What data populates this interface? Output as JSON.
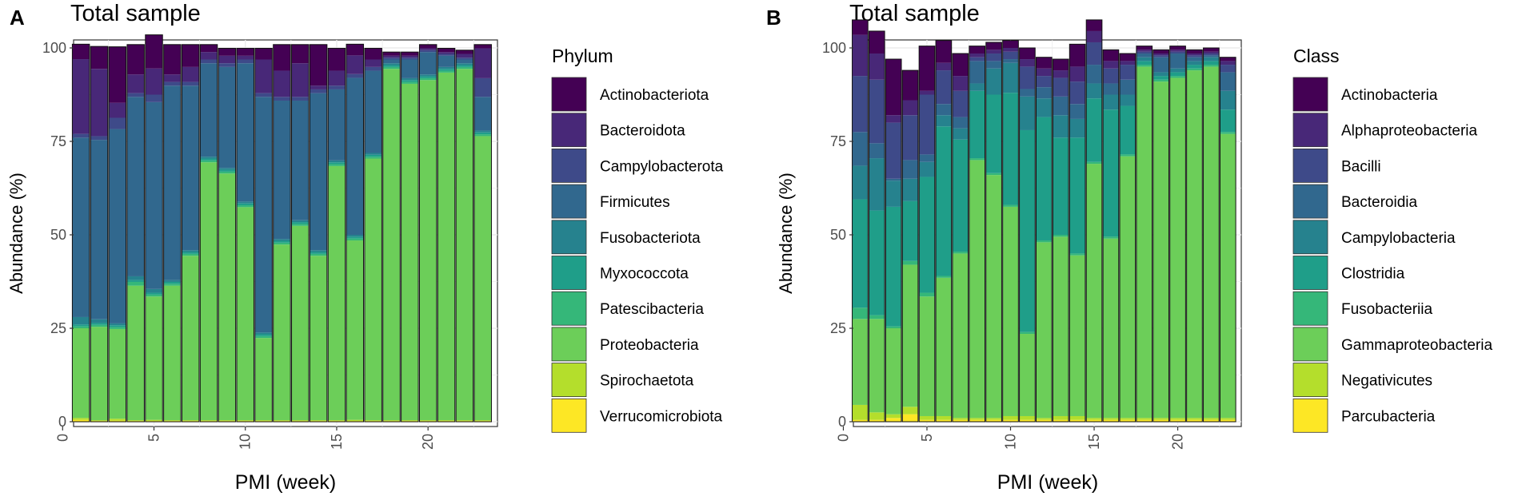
{
  "panels": [
    {
      "letter": "A",
      "chart_data": {
        "type": "bar",
        "stacked": true,
        "title": "Total sample",
        "xlabel": "PMI (week)",
        "ylabel": "Abundance (%)",
        "xlim": [
          0,
          24
        ],
        "ylim": [
          0,
          100
        ],
        "x_ticks": [
          0,
          5,
          10,
          15,
          20
        ],
        "y_ticks": [
          0,
          25,
          50,
          75,
          100
        ],
        "grid": true,
        "legend_title": "Phylum",
        "legend_position": "right",
        "x": [
          1,
          2,
          3,
          4,
          5,
          6,
          7,
          8,
          9,
          10,
          11,
          12,
          13,
          14,
          15,
          16,
          17,
          18,
          19,
          20,
          21,
          22,
          23
        ],
        "series": [
          {
            "name": "Actinobacteriota",
            "color": "#440154",
            "values": [
              4,
              6,
              15,
              8,
              9,
              8,
              6,
              2,
              2,
              2,
              3,
              7,
              5,
              11,
              6,
              3,
              3,
              1,
              1,
              1,
              1,
              1,
              1
            ]
          },
          {
            "name": "Bacteroidota",
            "color": "#482878",
            "values": [
              20,
              18,
              4,
              5,
              7,
              2,
              4,
              2,
              2,
              1,
              9,
              7,
              9,
              1,
              4,
              5,
              2,
              0.5,
              0.5,
              0.5,
              0.5,
              1,
              8
            ]
          },
          {
            "name": "Campylobacterota",
            "color": "#3E4A89",
            "values": [
              1,
              1,
              3,
              1,
              2,
              1,
              1,
              1,
              1,
              1,
              1,
              1,
              1,
              1,
              1,
              1,
              1,
              0.5,
              0.5,
              0.5,
              0.5,
              0.5,
              5
            ]
          },
          {
            "name": "Firmicutes",
            "color": "#31688E",
            "values": [
              48,
              48,
              52,
              48,
              50,
              52,
              44,
              25,
              27,
              37,
              63,
              37,
              32,
              42,
              19,
              42,
              22,
              1,
              5,
              6,
              3,
              1,
              9
            ]
          },
          {
            "name": "Fusobacteriota",
            "color": "#26828E",
            "values": [
              2,
              1,
              0.5,
              1,
              1,
              0.5,
              0.5,
              0.5,
              0.5,
              0.5,
              0.5,
              0.5,
              0.5,
              0.5,
              0.5,
              0.5,
              0.5,
              0.5,
              0.5,
              0.5,
              0.5,
              0.5,
              0.5
            ]
          },
          {
            "name": "Myxococcota",
            "color": "#1F9E89",
            "values": [
              0.5,
              0.5,
              0.5,
              0.5,
              0.5,
              0.5,
              0.5,
              0.5,
              0.5,
              0.5,
              0.5,
              0.5,
              0.5,
              0.5,
              0.5,
              0.5,
              0.5,
              0.5,
              0.5,
              0.5,
              0.5,
              0.5,
              0.5
            ]
          },
          {
            "name": "Patescibacteria",
            "color": "#35B779",
            "values": [
              0.5,
              0.5,
              0.5,
              1,
              0.5,
              0.5,
              0.5,
              0.5,
              0.5,
              0.5,
              0.5,
              0.5,
              0.5,
              0.5,
              0.5,
              0.5,
              0.5,
              0.5,
              0.5,
              0.5,
              0.5,
              0.5,
              0.5
            ]
          },
          {
            "name": "Proteobacteria",
            "color": "#6CCE59",
            "values": [
              24,
              25,
              24,
              36,
              33,
              36,
              44,
              69,
              66,
              57,
              22,
              47,
              52,
              44,
              68,
              48,
              70,
              94,
              90,
              91,
              93,
              94,
              76
            ]
          },
          {
            "name": "Spirochaetota",
            "color": "#B4DE2C",
            "values": [
              0.5,
              0.2,
              0.5,
              0.2,
              0.3,
              0.2,
              0.2,
              0.2,
              0.2,
              0.2,
              0.2,
              0.2,
              0.2,
              0.2,
              0.2,
              0.3,
              0.2,
              0.2,
              0.2,
              0.2,
              0.2,
              0.2,
              0.2
            ]
          },
          {
            "name": "Verrucomicrobiota",
            "color": "#FDE725",
            "values": [
              0.5,
              0.2,
              0.3,
              0.2,
              0.2,
              0.2,
              0.2,
              0.2,
              0.2,
              0.2,
              0.2,
              0.2,
              0.2,
              0.2,
              0.2,
              0.2,
              0.2,
              0.2,
              0.2,
              0.2,
              0.2,
              0.2,
              0.2
            ]
          }
        ]
      }
    },
    {
      "letter": "B",
      "chart_data": {
        "type": "bar",
        "stacked": true,
        "title": "Total sample",
        "xlabel": "PMI (week)",
        "ylabel": "Abundance (%)",
        "xlim": [
          0,
          24
        ],
        "ylim": [
          0,
          100
        ],
        "x_ticks": [
          0,
          5,
          10,
          15,
          20
        ],
        "y_ticks": [
          0,
          25,
          50,
          75,
          100
        ],
        "grid": true,
        "legend_title": "Class",
        "legend_position": "right",
        "x": [
          1,
          2,
          3,
          4,
          5,
          6,
          7,
          8,
          9,
          10,
          11,
          12,
          13,
          14,
          15,
          16,
          17,
          18,
          19,
          20,
          21,
          22,
          23
        ],
        "series": [
          {
            "name": "Actinobacteria",
            "color": "#440154",
            "values": [
              4,
              6,
              15,
              8,
              12,
              6,
              6,
              2,
              2,
              2,
              3,
              3,
              3,
              6,
              3,
              3,
              2,
              1,
              1,
              1,
              1,
              1,
              1
            ]
          },
          {
            "name": "Alphaproteobacteria",
            "color": "#482878",
            "values": [
              11,
              7,
              2,
              4,
              1,
              2,
              4,
              1,
              1,
              1,
              2,
              2,
              2,
              4,
              3,
              2,
              1,
              0.5,
              0.5,
              0.5,
              0.5,
              0.5,
              1
            ]
          },
          {
            "name": "Bacilli",
            "color": "#3E4A89",
            "values": [
              15,
              17,
              15,
              12,
              16,
              9,
              7,
              1,
              2,
              2,
              6,
              3,
              5,
              6,
              6,
              4,
              4,
              0.5,
              0.5,
              0.5,
              0.5,
              0.5,
              2
            ]
          },
          {
            "name": "Bacteroidia",
            "color": "#31688E",
            "values": [
              9,
              4,
              0.5,
              5,
              2,
              3,
              3,
              6,
              2,
              1,
              2,
              3,
              5,
              4,
              5,
              3,
              4,
              1,
              4,
              4,
              1,
              0.5,
              5
            ]
          },
          {
            "name": "Campylobacteria",
            "color": "#26828E",
            "values": [
              9,
              14,
              7,
              6,
              4,
              3,
              3,
              2,
              7,
              8,
              9,
              5,
              6,
              5,
              4,
              4,
              3,
              1,
              1,
              1,
              1,
              1,
              5
            ]
          },
          {
            "name": "Clostridia",
            "color": "#1F9E89",
            "values": [
              29,
              28,
              32,
              16,
              31,
              40,
              30,
              18,
              21,
              30,
              54,
              33,
              26,
              31,
              17,
              34,
              13,
              1,
              1,
              1,
              1,
              1,
              6
            ]
          },
          {
            "name": "Fusobacteriia",
            "color": "#35B779",
            "values": [
              3,
              1,
              0.5,
              1,
              1,
              0.5,
              0.5,
              0.5,
              0.5,
              0.5,
              0.5,
              0.5,
              0.5,
              0.5,
              0.5,
              0.5,
              0.5,
              0.5,
              0.5,
              0.5,
              0.5,
              0.5,
              0.5
            ]
          },
          {
            "name": "Gammaproteobacteria",
            "color": "#6CCE59",
            "values": [
              23,
              25,
              23,
              38,
              32,
              37,
              44,
              69,
              65,
              56,
              22,
              47,
              48,
              43,
              68,
              48,
              70,
              94,
              90,
              91,
              93,
              94,
              76
            ]
          },
          {
            "name": "Negativicutes",
            "color": "#B4DE2C",
            "values": [
              4,
              2,
              1,
              2,
              1,
              1,
              0.5,
              0.5,
              0.5,
              1,
              1,
              0.5,
              1,
              1,
              0.5,
              0.5,
              0.5,
              0.5,
              0.5,
              0.5,
              0.5,
              0.5,
              0.5
            ]
          },
          {
            "name": "Parcubacteria",
            "color": "#FDE725",
            "values": [
              0.5,
              0.5,
              1,
              2,
              0.5,
              0.5,
              0.5,
              0.5,
              0.5,
              0.5,
              0.5,
              0.5,
              0.5,
              0.5,
              0.5,
              0.5,
              0.5,
              0.5,
              0.5,
              0.5,
              0.5,
              0.5,
              0.5
            ]
          }
        ]
      }
    }
  ]
}
